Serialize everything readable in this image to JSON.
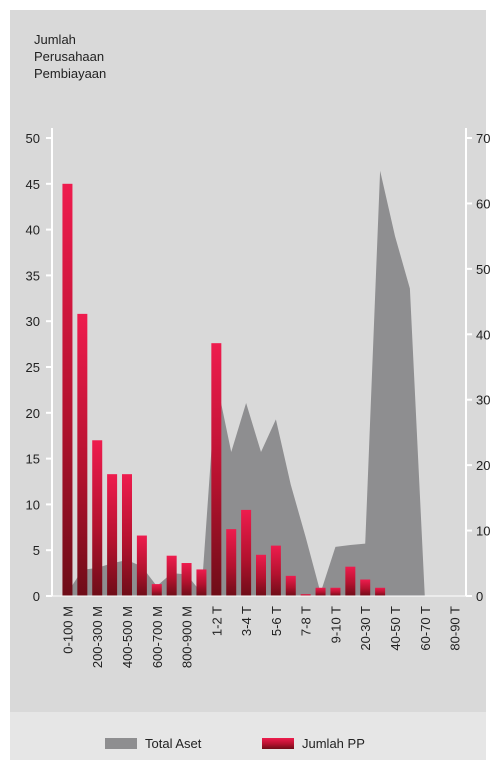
{
  "chart_data": {
    "type": "bar",
    "ylabel": [
      "Jumlah",
      "Perusahaan",
      "Pembiayaan"
    ],
    "categories": [
      "0-100 M",
      null,
      "200-300 M",
      null,
      "400-500 M",
      null,
      "600-700 M",
      null,
      "800-900 M",
      null,
      "1-2 T",
      null,
      "3-4 T",
      null,
      "5-6 T",
      null,
      "7-8 T",
      null,
      "9-10 T",
      null,
      "20-30 T",
      null,
      "40-50 T",
      null,
      "60-70 T",
      null,
      "80-90 T"
    ],
    "series": [
      {
        "name": "Total Aset",
        "type": "area",
        "axis": "y2",
        "color": "#8e8e90",
        "values": [
          0.5,
          4,
          4.3,
          5,
          5.5,
          4.5,
          1.5,
          3.5,
          3.3,
          0.5,
          33,
          22,
          29.5,
          22,
          27,
          17,
          9,
          0.5,
          7.5,
          7.8,
          8,
          65,
          55,
          47,
          0,
          0,
          0
        ]
      },
      {
        "name": "Jumlah PP",
        "type": "bar",
        "color": "#e8174a",
        "values": [
          45,
          30.8,
          17,
          13.3,
          13.3,
          6.6,
          1.3,
          4.4,
          3.6,
          2.9,
          27.6,
          7.3,
          9.4,
          4.5,
          5.5,
          2.2,
          0.2,
          0.9,
          0.9,
          3.2,
          1.8,
          0.9,
          0,
          0,
          0,
          0,
          0
        ]
      }
    ],
    "ylim": [
      0,
      50
    ],
    "yticks": [
      0,
      5,
      10,
      15,
      20,
      25,
      30,
      35,
      40,
      45,
      50
    ],
    "y2lim": [
      0,
      70
    ],
    "y2ticks": [
      0,
      10,
      20,
      30,
      40,
      50,
      60,
      70
    ]
  }
}
